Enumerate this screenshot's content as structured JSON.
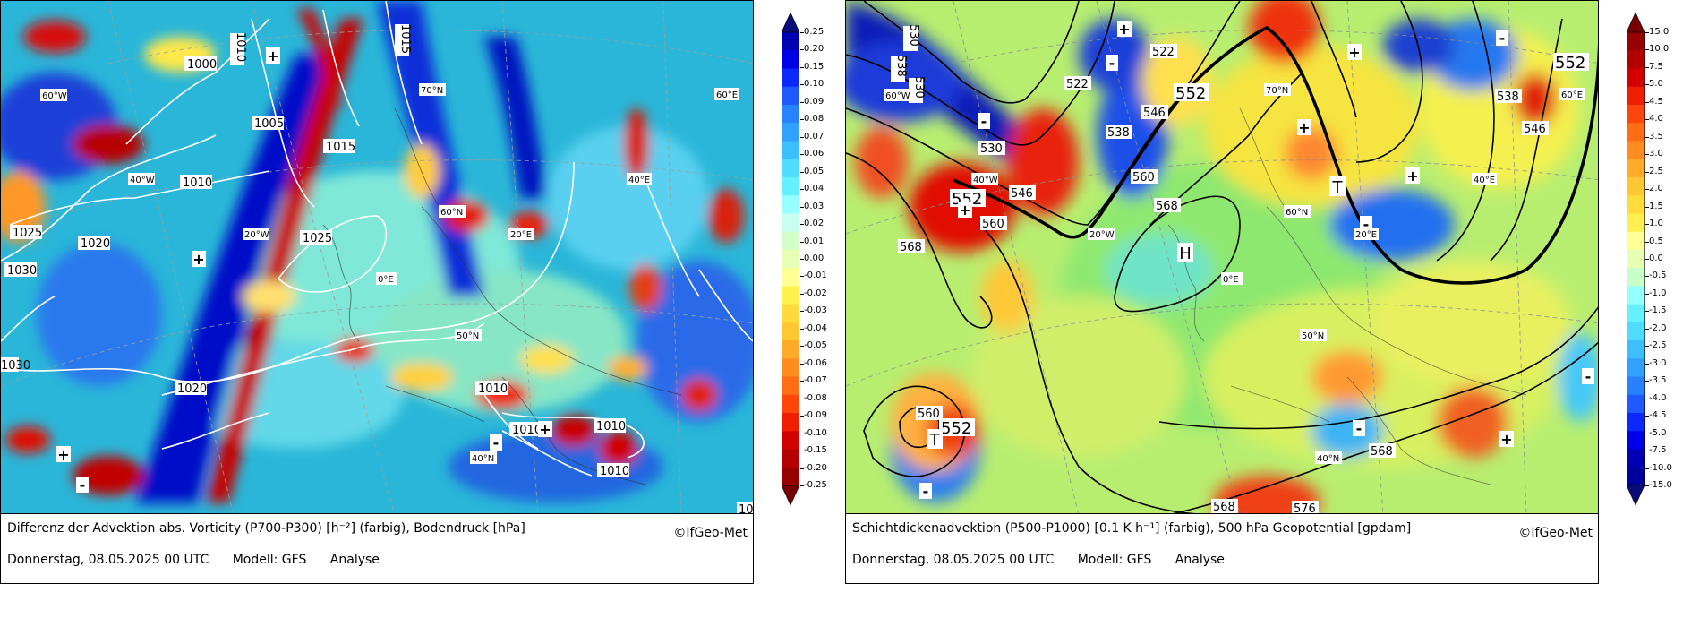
{
  "panels": [
    {
      "caption_title": "Differenz der Advektion abs. Vorticity (P700-P300) [h⁻²] (farbig), Bodendruck [hPa]",
      "copyright": "©IfGeo-Met",
      "date": "Donnerstag, 08.05.2025 00 UTC",
      "model": "Modell: GFS",
      "run_type": "Analyse",
      "colorbar_ticks": [
        "0.25",
        "0.20",
        "0.15",
        "0.10",
        "0.09",
        "0.08",
        "0.07",
        "0.06",
        "0.05",
        "0.04",
        "0.03",
        "0.02",
        "0.01",
        "0.00",
        "-0.01",
        "-0.02",
        "-0.03",
        "-0.04",
        "-0.05",
        "-0.06",
        "-0.07",
        "-0.08",
        "-0.09",
        "-0.10",
        "-0.15",
        "-0.20",
        "-0.25"
      ],
      "colorbar_colors": [
        "#0a0a7a",
        "#0000b4",
        "#0000e6",
        "#0a28ff",
        "#1e5aff",
        "#2882ff",
        "#32a0ff",
        "#3cbeff",
        "#50dcff",
        "#64f0ff",
        "#96ffff",
        "#c8fff0",
        "#d2ffc8",
        "#e6ffb4",
        "#ffff96",
        "#fff050",
        "#ffdc3c",
        "#ffc832",
        "#ffaa28",
        "#ff8c1e",
        "#ff6e14",
        "#ff460a",
        "#f01e00",
        "#d20000",
        "#b40000",
        "#960000",
        "#780000"
      ],
      "isobar_labels": [
        "1000",
        "1005",
        "1010",
        "1015",
        "1020",
        "1025",
        "1030",
        "1010",
        "1015",
        "1020",
        "1025",
        "1030",
        "1010",
        "1010",
        "1010",
        "1010",
        "10"
      ],
      "pressure_symbols": [
        "+",
        "+",
        "+",
        "+",
        "-",
        "-"
      ],
      "geo_labels": [
        "60°W",
        "70°N",
        "60°E",
        "40°W",
        "40°E",
        "20°W",
        "60°N",
        "20°E",
        "0°E",
        "50°N",
        "40°N"
      ]
    },
    {
      "caption_title": "Schichtdickenadvektion (P500-P1000) [0.1 K h⁻¹] (farbig), 500 hPa Geopotential [gpdam]",
      "copyright": "©IfGeo-Met",
      "date": "Donnerstag, 08.05.2025 00 UTC",
      "model": "Modell: GFS",
      "run_type": "Analyse",
      "colorbar_ticks": [
        "15.0",
        "10.0",
        "7.5",
        "5.0",
        "4.5",
        "4.0",
        "3.5",
        "3.0",
        "2.5",
        "2.0",
        "1.5",
        "1.0",
        "0.5",
        "0.0",
        "-0.5",
        "-1.0",
        "-1.5",
        "-2.0",
        "-2.5",
        "-3.0",
        "-3.5",
        "-4.0",
        "-4.5",
        "-5.0",
        "-7.5",
        "-10.0",
        "-15.0"
      ],
      "colorbar_colors": [
        "#780000",
        "#960000",
        "#b40000",
        "#d20000",
        "#f01e00",
        "#ff460a",
        "#ff6e14",
        "#ff8c1e",
        "#ffaa28",
        "#ffc832",
        "#ffdc3c",
        "#fff050",
        "#ffff96",
        "#e6ffb4",
        "#c8ffc8",
        "#96ffff",
        "#64f0ff",
        "#50dcff",
        "#3cbeff",
        "#32a0ff",
        "#2882ff",
        "#1e5aff",
        "#0a28ff",
        "#0000e6",
        "#0000b4",
        "#00009a",
        "#0a0a7a"
      ],
      "height_labels": [
        "530",
        "538",
        "530",
        "522",
        "530",
        "538",
        "546",
        "522",
        "546",
        "552",
        "560",
        "568",
        "538",
        "546",
        "552",
        "560",
        "568",
        "552",
        "560",
        "552",
        "568",
        "568",
        "576"
      ],
      "pressure_symbols": [
        "+",
        "+",
        "+",
        "+",
        "+",
        "+",
        "-",
        "-",
        "-",
        "-",
        "-",
        "-",
        "-"
      ],
      "centers": [
        "H",
        "T",
        "T"
      ],
      "geo_labels": [
        "60°W",
        "70°N",
        "60°E",
        "40°W",
        "40°E",
        "20°W",
        "60°N",
        "20°E",
        "0°E",
        "50°N",
        "40°N"
      ]
    }
  ]
}
